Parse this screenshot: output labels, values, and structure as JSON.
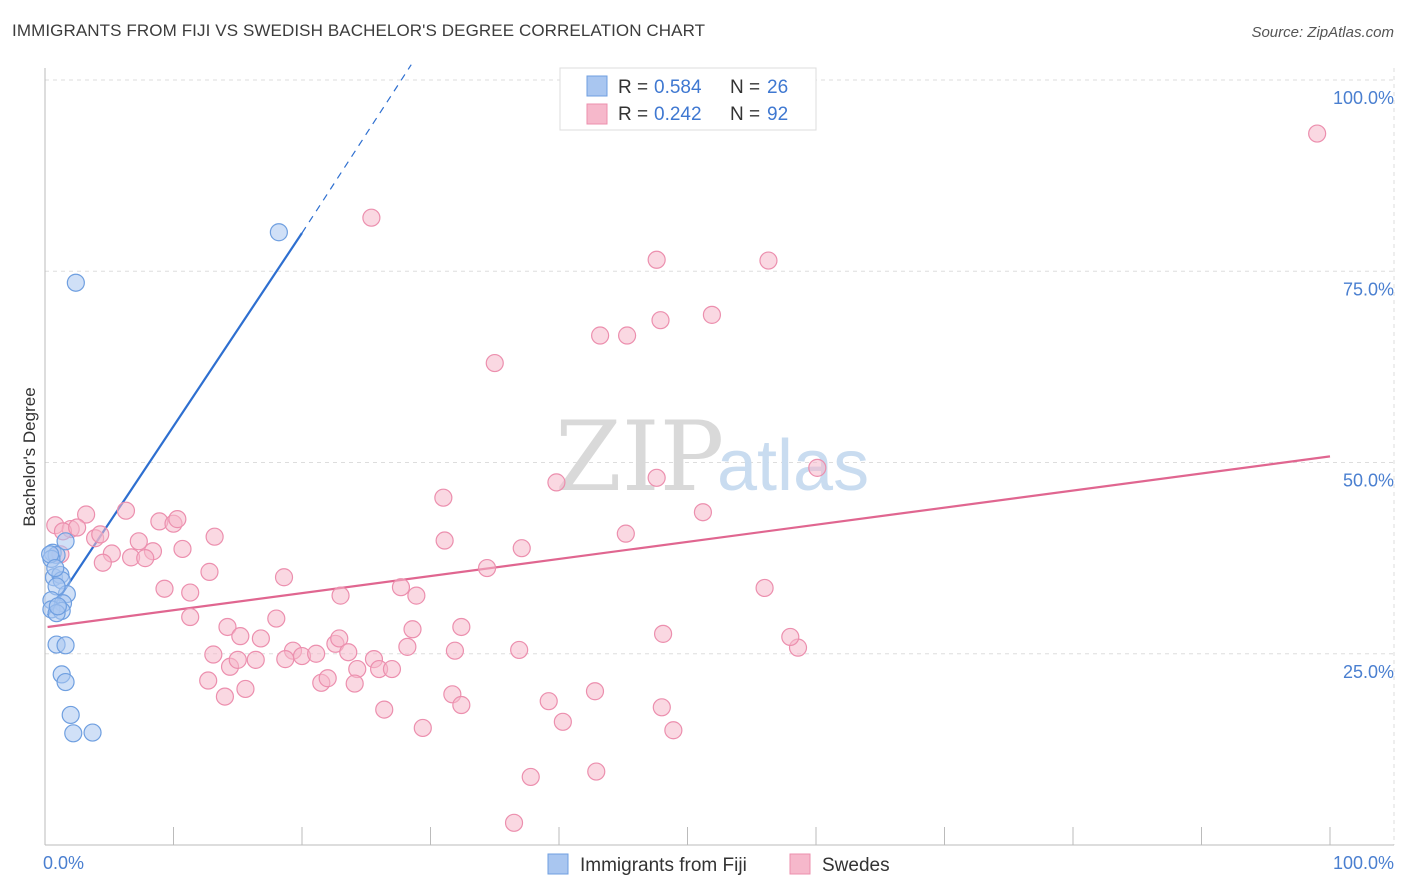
{
  "title": "IMMIGRANTS FROM FIJI VS SWEDISH BACHELOR'S DEGREE CORRELATION CHART",
  "source": "Source: ZipAtlas.com",
  "watermark": {
    "zip": "ZIP",
    "atlas": "atlas"
  },
  "colors": {
    "blue_fill": "#a9c6f0",
    "blue_stroke": "#6f9fe0",
    "blue_line": "#2e6fd0",
    "pink_fill": "#f6b8cb",
    "pink_stroke": "#ec8fae",
    "pink_line": "#e06690",
    "tick_text": "#4a7fd0",
    "grid": "#dddddd"
  },
  "legend": {
    "rows": [
      {
        "r_label": "R =",
        "r_value": "0.584",
        "n_label": "N =",
        "n_value": "26"
      },
      {
        "r_label": "R =",
        "r_value": "0.242",
        "n_label": "N =",
        "n_value": "92"
      }
    ]
  },
  "bottom_legend": [
    "Immigrants from Fiji",
    "Swedes"
  ],
  "chart_data": {
    "type": "scatter",
    "title": "IMMIGRANTS FROM FIJI VS SWEDISH BACHELOR'S DEGREE CORRELATION CHART",
    "xlabel": "",
    "ylabel": "Bachelor's Degree",
    "xlim": [
      0,
      100
    ],
    "ylim": [
      0,
      100
    ],
    "x_tick_labels": [
      "0.0%",
      "100.0%"
    ],
    "y_ticks": [
      25,
      50,
      75,
      100
    ],
    "y_tick_labels": [
      "25.0%",
      "50.0%",
      "75.0%",
      "100.0%"
    ],
    "grid": true,
    "series": [
      {
        "name": "Immigrants from Fiji",
        "color": "blue",
        "R": 0.584,
        "N": 26,
        "trend": {
          "x0": 0.2,
          "y0": 30.0,
          "x1": 20.0,
          "y1": 80.0,
          "dash_to_x": 28.5,
          "dash_to_y": 102.0
        },
        "points": [
          [
            18.2,
            80.1
          ],
          [
            2.4,
            73.5
          ],
          [
            0.6,
            38.2
          ],
          [
            0.9,
            37.9
          ],
          [
            1.6,
            39.7
          ],
          [
            0.5,
            37.4
          ],
          [
            0.7,
            35.0
          ],
          [
            1.2,
            35.3
          ],
          [
            1.3,
            34.6
          ],
          [
            1.7,
            32.8
          ],
          [
            0.9,
            33.8
          ],
          [
            0.5,
            32.0
          ],
          [
            1.4,
            31.6
          ],
          [
            0.5,
            30.8
          ],
          [
            1.3,
            30.6
          ],
          [
            0.9,
            30.3
          ],
          [
            0.9,
            26.2
          ],
          [
            1.6,
            26.1
          ],
          [
            1.3,
            22.3
          ],
          [
            1.6,
            21.3
          ],
          [
            2.0,
            17.0
          ],
          [
            2.2,
            14.6
          ],
          [
            3.7,
            14.7
          ],
          [
            0.4,
            38.0
          ],
          [
            0.8,
            36.2
          ],
          [
            1.0,
            31.2
          ]
        ]
      },
      {
        "name": "Swedes",
        "color": "pink",
        "R": 0.242,
        "N": 92,
        "trend": {
          "x0": 0.2,
          "y0": 28.5,
          "x1": 100.0,
          "y1": 50.8
        },
        "points": [
          [
            99.0,
            93.0
          ],
          [
            25.4,
            82.0
          ],
          [
            47.6,
            76.5
          ],
          [
            56.3,
            76.4
          ],
          [
            47.9,
            68.6
          ],
          [
            51.9,
            69.3
          ],
          [
            43.2,
            66.6
          ],
          [
            45.3,
            66.6
          ],
          [
            35.0,
            63.0
          ],
          [
            60.1,
            49.3
          ],
          [
            39.8,
            47.4
          ],
          [
            31.0,
            45.4
          ],
          [
            0.8,
            41.8
          ],
          [
            3.2,
            43.2
          ],
          [
            6.3,
            43.7
          ],
          [
            8.9,
            42.3
          ],
          [
            10.0,
            42.0
          ],
          [
            10.3,
            42.6
          ],
          [
            2.0,
            41.3
          ],
          [
            1.4,
            41.0
          ],
          [
            2.5,
            41.5
          ],
          [
            3.9,
            40.1
          ],
          [
            4.3,
            40.6
          ],
          [
            13.2,
            40.3
          ],
          [
            7.3,
            39.7
          ],
          [
            8.4,
            38.4
          ],
          [
            10.7,
            38.7
          ],
          [
            5.2,
            38.1
          ],
          [
            6.7,
            37.6
          ],
          [
            1.2,
            38.0
          ],
          [
            7.8,
            37.5
          ],
          [
            4.5,
            36.9
          ],
          [
            11.3,
            33.0
          ],
          [
            9.3,
            33.5
          ],
          [
            14.2,
            28.5
          ],
          [
            15.2,
            27.3
          ],
          [
            11.3,
            29.8
          ],
          [
            12.8,
            35.7
          ],
          [
            18.6,
            35.0
          ],
          [
            23.0,
            32.6
          ],
          [
            27.7,
            33.7
          ],
          [
            28.9,
            32.6
          ],
          [
            31.1,
            39.8
          ],
          [
            34.4,
            36.2
          ],
          [
            37.1,
            38.8
          ],
          [
            45.2,
            40.7
          ],
          [
            51.2,
            43.5
          ],
          [
            56.0,
            33.6
          ],
          [
            47.6,
            48.0
          ],
          [
            16.8,
            27.0
          ],
          [
            18.0,
            29.6
          ],
          [
            19.3,
            25.4
          ],
          [
            20.0,
            24.7
          ],
          [
            21.1,
            25.0
          ],
          [
            22.6,
            26.3
          ],
          [
            22.9,
            27.0
          ],
          [
            23.6,
            25.2
          ],
          [
            25.6,
            24.3
          ],
          [
            26.0,
            23.0
          ],
          [
            24.3,
            23.0
          ],
          [
            27.0,
            23.0
          ],
          [
            28.2,
            25.9
          ],
          [
            28.6,
            28.2
          ],
          [
            31.9,
            25.4
          ],
          [
            32.4,
            28.5
          ],
          [
            36.9,
            25.5
          ],
          [
            13.1,
            24.9
          ],
          [
            14.4,
            23.3
          ],
          [
            15.0,
            24.2
          ],
          [
            16.4,
            24.2
          ],
          [
            18.7,
            24.3
          ],
          [
            21.5,
            21.2
          ],
          [
            22.0,
            21.8
          ],
          [
            12.7,
            21.5
          ],
          [
            14.0,
            19.4
          ],
          [
            15.6,
            20.4
          ],
          [
            24.1,
            21.1
          ],
          [
            26.4,
            17.7
          ],
          [
            31.7,
            19.7
          ],
          [
            32.4,
            18.3
          ],
          [
            39.2,
            18.8
          ],
          [
            40.3,
            16.1
          ],
          [
            42.8,
            20.1
          ],
          [
            48.0,
            18.0
          ],
          [
            48.1,
            27.6
          ],
          [
            58.6,
            25.8
          ],
          [
            37.8,
            8.9
          ],
          [
            42.9,
            9.6
          ],
          [
            29.4,
            15.3
          ],
          [
            48.9,
            15.0
          ],
          [
            36.5,
            2.9
          ],
          [
            58.0,
            27.2
          ]
        ]
      }
    ]
  }
}
